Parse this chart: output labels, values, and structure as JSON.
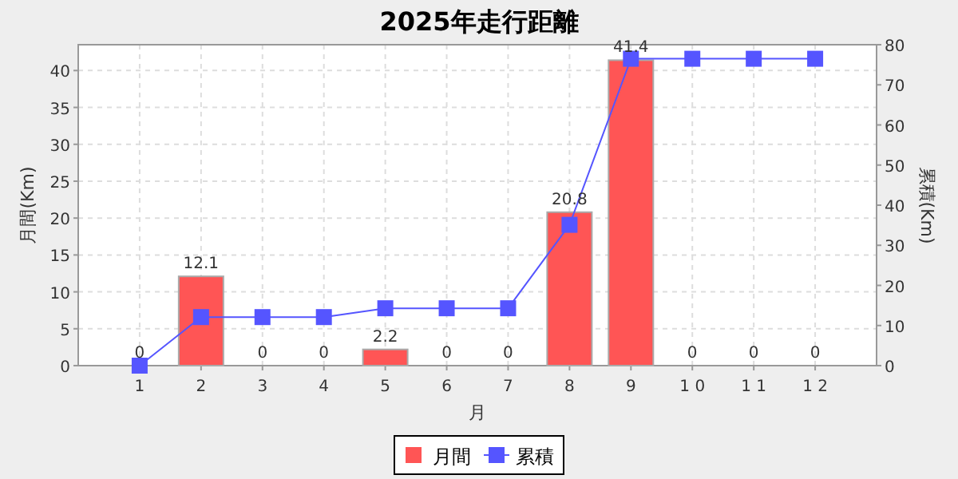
{
  "chart_data": {
    "type": "bar",
    "title": "2025年走行距離",
    "xlabel": "月",
    "ylabel": "月間(Km)",
    "y2label": "累積(Km)",
    "categories": [
      "1",
      "2",
      "3",
      "4",
      "5",
      "6",
      "7",
      "8",
      "9",
      "1 0",
      "1 1",
      "1 2"
    ],
    "series": [
      {
        "name": "月間",
        "color": "#ff5555",
        "values": [
          0,
          12.1,
          0,
          0,
          2.2,
          0,
          0,
          20.8,
          41.4,
          0,
          0,
          0
        ],
        "value_labels": [
          "0",
          "12.1",
          "0",
          "0",
          "2.2",
          "0",
          "0",
          "20.8",
          "41.4",
          "0",
          "0",
          "0"
        ]
      },
      {
        "name": "累積",
        "color": "#5555ff",
        "type": "line",
        "axis": "y2",
        "marker": "square",
        "values": [
          0,
          12.1,
          12.1,
          12.1,
          14.3,
          14.3,
          14.3,
          35.1,
          76.5,
          76.5,
          76.5,
          76.5
        ]
      }
    ],
    "ylim": [
      0,
      43.5
    ],
    "yticks": [
      0,
      5,
      10,
      15,
      20,
      25,
      30,
      35,
      40
    ],
    "y2lim": [
      0,
      80
    ],
    "y2ticks": [
      0,
      10,
      20,
      30,
      40,
      50,
      60,
      70,
      80
    ],
    "grid": true,
    "legend": "bottom"
  }
}
